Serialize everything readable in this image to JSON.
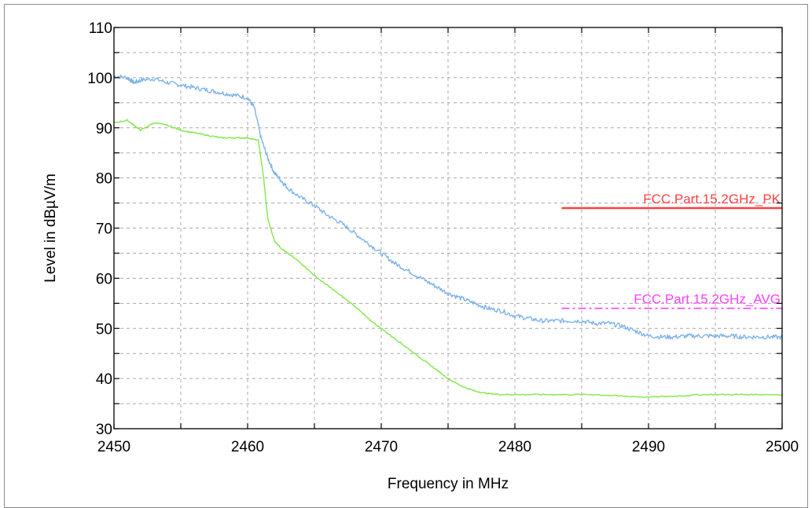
{
  "chart_data": {
    "type": "line",
    "xlabel": "Frequency in MHz",
    "ylabel": "Level in dBµV/m",
    "xlim": [
      2450,
      2500
    ],
    "ylim": [
      30,
      110
    ],
    "xticks": [
      2450,
      2460,
      2470,
      2480,
      2490,
      2500
    ],
    "yticks": [
      30,
      40,
      50,
      60,
      70,
      80,
      90,
      100,
      110
    ],
    "grid": true,
    "series": [
      {
        "color": "#7fb2ea",
        "x": [
          2450,
          2451,
          2451.5,
          2452,
          2453,
          2454,
          2455,
          2456,
          2457,
          2458,
          2459,
          2460,
          2460.5,
          2461,
          2461.5,
          2462,
          2462.5,
          2463,
          2464,
          2465,
          2466,
          2467,
          2468,
          2469,
          2470,
          2471,
          2472,
          2473,
          2474,
          2475,
          2476,
          2477,
          2478,
          2479,
          2480,
          2481,
          2482,
          2483,
          2484,
          2485,
          2486,
          2487,
          2488,
          2489,
          2490,
          2491,
          2492,
          2493,
          2494,
          2495,
          2496,
          2497,
          2498,
          2499,
          2500
        ],
        "y": [
          100.3,
          100,
          99,
          99.5,
          99.8,
          99,
          98.5,
          98,
          97.5,
          97,
          96.5,
          96,
          94,
          88,
          84,
          81,
          79.5,
          78,
          76,
          74.5,
          72.5,
          71,
          69,
          67,
          65,
          63,
          61.5,
          60,
          58.5,
          57,
          56,
          55,
          54,
          53.5,
          52.5,
          52,
          51.5,
          51.5,
          51.5,
          51.5,
          51,
          51,
          50.5,
          49.5,
          48.5,
          48.3,
          48.3,
          48.5,
          48.5,
          48.5,
          48.5,
          48.3,
          48.3,
          48.3,
          48.2
        ]
      },
      {
        "color": "#80e84a",
        "x": [
          2450,
          2451,
          2451.5,
          2452,
          2453,
          2454,
          2455,
          2456,
          2457,
          2458,
          2459,
          2460,
          2460.8,
          2461.2,
          2461.5,
          2462,
          2462.5,
          2463,
          2464,
          2465,
          2466,
          2467,
          2468,
          2469,
          2470,
          2471,
          2472,
          2473,
          2474,
          2475,
          2476,
          2477,
          2478,
          2479,
          2480,
          2482,
          2484,
          2486,
          2488,
          2490,
          2492,
          2494,
          2496,
          2498,
          2500
        ],
        "y": [
          91,
          91.5,
          90.5,
          89.5,
          91,
          90.5,
          89.5,
          89,
          88.5,
          88,
          88,
          88,
          87.5,
          80,
          72,
          67.5,
          66,
          65,
          63,
          60.5,
          58.5,
          56.5,
          54.5,
          52,
          50,
          48,
          46,
          44,
          42,
          40,
          38.5,
          37.5,
          37,
          36.8,
          36.8,
          36.8,
          36.8,
          36.8,
          36.5,
          36.3,
          36.5,
          36.8,
          36.8,
          36.8,
          36.8
        ]
      }
    ],
    "limits": [
      {
        "name": "FCC Part 15 2GHz PK",
        "label": "FCC.Part.15.2GHz_PK",
        "color": "#ff4040",
        "value": 74,
        "x_range": [
          2483.5,
          2500
        ],
        "style": "solid"
      },
      {
        "name": "FCC Part 15 2GHz AVG",
        "label": "FCC.Part.15.2GHz_AVG",
        "color": "#ff40ff",
        "value": 54,
        "x_range": [
          2483.5,
          2500
        ],
        "style": "dashdot"
      }
    ]
  }
}
